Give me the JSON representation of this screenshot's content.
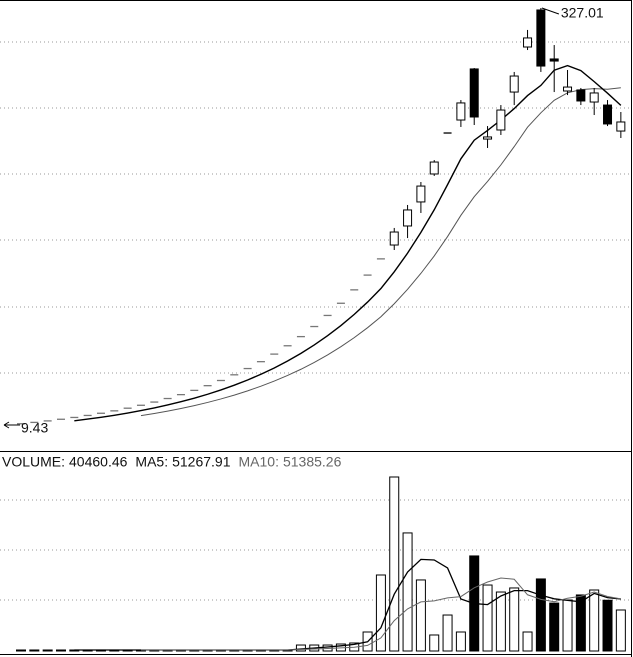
{
  "chart_data": [
    {
      "type": "candlestick",
      "ylim": [
        -9.61,
        333.1
      ],
      "low_mark": 9.43,
      "open": [
        10.37,
        11.41,
        12.55,
        13.8,
        15.18,
        16.7,
        18.37,
        20.21,
        22.23,
        24.45,
        26.9,
        29.59,
        32.55,
        35.8,
        39.38,
        43.32,
        47.65,
        52.42,
        57.66,
        63.42,
        69.77,
        76.74,
        84.42,
        92.86,
        102.14,
        112.36,
        123.59,
        135.95,
        146.5,
        161,
        179.3,
        200.6,
        231.8,
        241.7,
        280.6,
        227.2,
        234.1,
        263,
        297.3,
        325.5,
        288.2,
        263.8,
        264.6,
        255.4,
        253.1,
        233.3
      ],
      "high": [
        10.37,
        11.41,
        12.55,
        13.8,
        15.18,
        16.7,
        18.37,
        20.21,
        22.23,
        24.45,
        26.9,
        29.59,
        32.55,
        35.8,
        39.38,
        43.32,
        47.65,
        52.42,
        57.66,
        63.42,
        69.77,
        76.74,
        84.42,
        92.86,
        102.14,
        112.36,
        123.59,
        135.95,
        159.5,
        177,
        194.5,
        211.2,
        231.8,
        256.9,
        281.3,
        237.1,
        253.1,
        278.3,
        310.3,
        327.01,
        298.8,
        279.8,
        266.1,
        266.1,
        256.9,
        247.8
      ],
      "low": [
        10.37,
        11.41,
        12.55,
        13.8,
        15.18,
        16.7,
        18.37,
        20.21,
        22.23,
        24.45,
        26.9,
        29.59,
        32.55,
        35.8,
        39.38,
        43.32,
        47.65,
        52.42,
        57.66,
        63.42,
        69.77,
        76.74,
        84.42,
        92.86,
        102.14,
        112.36,
        123.59,
        135.95,
        142.7,
        151.8,
        170.9,
        199.1,
        231.8,
        236.4,
        237.9,
        220.4,
        230.3,
        253.1,
        295,
        278.3,
        263,
        260.7,
        253.1,
        245.5,
        237.1,
        228
      ],
      "close": [
        10.37,
        11.41,
        12.55,
        13.8,
        15.18,
        16.7,
        18.37,
        20.21,
        22.23,
        24.45,
        26.9,
        29.59,
        32.55,
        35.8,
        39.38,
        43.32,
        47.65,
        52.42,
        57.66,
        63.42,
        69.77,
        76.74,
        84.42,
        92.86,
        102.14,
        112.36,
        123.59,
        135.95,
        156.4,
        173.2,
        191.4,
        209.7,
        231.8,
        254.7,
        244,
        228.8,
        249.3,
        275.2,
        304.2,
        282.8,
        286.6,
        266.8,
        256.2,
        262.3,
        238.7,
        240.2
      ],
      "ma5": [
        null,
        null,
        null,
        null,
        12.66,
        13.92,
        15.32,
        16.85,
        18.54,
        20.39,
        22.43,
        24.67,
        27.14,
        29.85,
        32.84,
        36.12,
        39.73,
        43.71,
        48.08,
        52.88,
        58.17,
        63.99,
        70.39,
        77.43,
        85.16,
        93.69,
        103.05,
        113.36,
        126.09,
        140.3,
        156.11,
        173.33,
        192.5,
        212.16,
        226.32,
        233.8,
        241.72,
        250.4,
        260.3,
        268.06,
        279.62,
        283.12,
        279.32,
        270.94,
        262.12,
        252.84
      ],
      "ma5_color": "#000000",
      "ma10": [
        null,
        null,
        null,
        null,
        null,
        null,
        null,
        null,
        null,
        16.53,
        18.18,
        20,
        22,
        24.2,
        26.62,
        29.28,
        32.21,
        35.44,
        38.98,
        42.87,
        47.16,
        51.88,
        57.07,
        62.77,
        69.05,
        75.95,
        83.55,
        91.9,
        101.77,
        112.74,
        124.91,
        138.2,
        152.94,
        169.12,
        183.31,
        194.95,
        207.53,
        221.45,
        236.23,
        247.19,
        256.71,
        262.42,
        264.86,
        265.62,
        265.09,
        266.23
      ],
      "ma10_color": "#555555"
    },
    {
      "type": "bar",
      "label": "VOLUME:",
      "ylim": [
        0,
        178600
      ],
      "values": [
        1000,
        1000,
        1000,
        1000,
        1000,
        1000,
        1000,
        1000,
        1000,
        1000,
        1000,
        1000,
        1000,
        1000,
        1000,
        1000,
        1000,
        1000,
        1000,
        1000,
        1000,
        5900,
        5900,
        5900,
        6900,
        7900,
        18750,
        75000,
        171700,
        116500,
        70100,
        15800,
        35500,
        18750,
        93800,
        65100,
        58200,
        62200,
        18750,
        71100,
        47263.05,
        50300,
        55300,
        60200,
        50079.09,
        40460.46
      ],
      "series": [
        {
          "name": "MA5:",
          "color": "#000000",
          "values": [
            null,
            null,
            null,
            null,
            1000,
            1000,
            1000,
            1000,
            1000,
            1000,
            1000,
            1000,
            1000,
            1000,
            1000,
            1000,
            1000,
            1000,
            1000,
            1000,
            1000,
            1980,
            2960,
            3940,
            5120,
            6500,
            9070,
            22890,
            56050,
            77970,
            90410,
            89820,
            81920,
            51330,
            46790,
            45790,
            54270,
            59610,
            59610,
            55070,
            51502.61,
            49922.61,
            48542.61,
            56832.61,
            52628.43,
            51267.91
          ]
        },
        {
          "name": "MA10:",
          "color": "#666666",
          "values": [
            null,
            null,
            null,
            null,
            null,
            null,
            null,
            null,
            null,
            1000,
            1000,
            1000,
            1000,
            1000,
            1000,
            1000,
            1000,
            1000,
            1000,
            1000,
            1000,
            1490,
            1980,
            2470,
            3060,
            3750,
            5525,
            12925,
            29995,
            41545,
            48455,
            49445,
            52405,
            53690,
            62380,
            68100,
            72045,
            70765,
            55470,
            50930,
            48646.31,
            52096.31,
            54076.31,
            58221.31,
            53849.21,
            51385.26
          ]
        }
      ]
    }
  ]
}
